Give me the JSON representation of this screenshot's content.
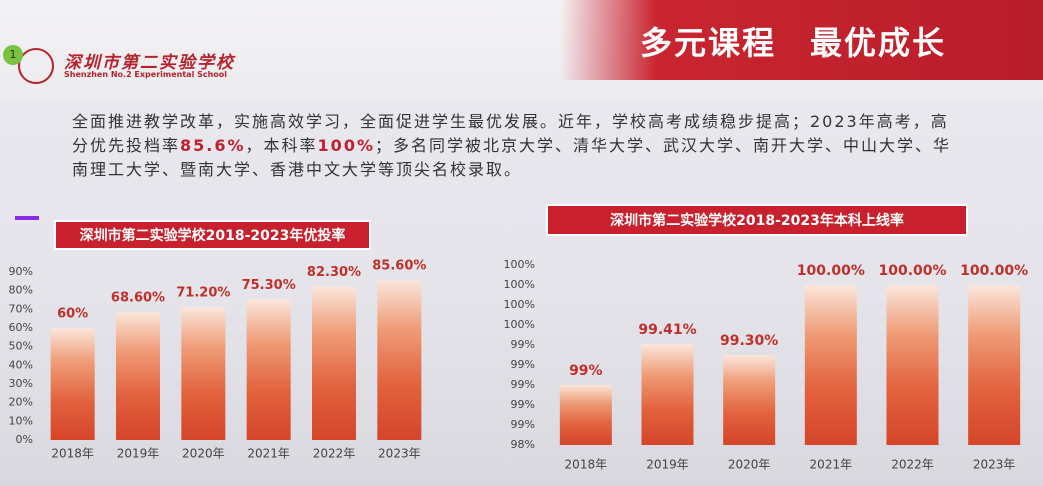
{
  "badge": "1",
  "header": {
    "school_cn": "深圳市第二实验学校",
    "school_en": "Shenzhen No.2 Experimental School",
    "title": "多元课程　最优成长"
  },
  "intro": [
    "全面推进教学改革，实施高效学习，全面促进学生最优发展。近年，学校高考成绩稳步提高；2023年高考，高分优先投档率",
    "85.6%",
    "，本科率",
    "100%",
    "；多名同学被北京大学、清华大学、武汉大学、南开大学、中山大学、华南理工大学、暨南大学、香港中文大学等顶尖名校录取。"
  ],
  "chart_data": [
    {
      "type": "bar",
      "title": "深圳市第二实验学校2018-2023年优投率",
      "categories": [
        "2018年",
        "2019年",
        "2020年",
        "2021年",
        "2022年",
        "2023年"
      ],
      "values": [
        60,
        68.6,
        71.2,
        75.3,
        82.3,
        85.6
      ],
      "value_labels": [
        "60%",
        "68.60%",
        "71.20%",
        "75.30%",
        "82.30%",
        "85.60%"
      ],
      "ylim": [
        0,
        90
      ],
      "yticks": [
        {
          "value": 0,
          "label": "0%"
        },
        {
          "value": 10,
          "label": "10%"
        },
        {
          "value": 20,
          "label": "20%"
        },
        {
          "value": 30,
          "label": "30%"
        },
        {
          "value": 40,
          "label": "40%"
        },
        {
          "value": 50,
          "label": "50%"
        },
        {
          "value": 60,
          "label": "60%"
        },
        {
          "value": 70,
          "label": "70%"
        },
        {
          "value": 80,
          "label": "80%"
        },
        {
          "value": 90,
          "label": "90%"
        }
      ]
    },
    {
      "type": "bar",
      "title": "深圳市第二实验学校2018-2023年本科上线率",
      "categories": [
        "2018年",
        "2019年",
        "2020年",
        "2021年",
        "2022年",
        "2023年"
      ],
      "values": [
        99,
        99.41,
        99.3,
        100,
        100,
        100
      ],
      "value_labels": [
        "99%",
        "99.41%",
        "99.30%",
        "100.00%",
        "100.00%",
        "100.00%"
      ],
      "ylim": [
        98.4,
        100.2
      ],
      "yticks": [
        {
          "value": 98.4,
          "label": "98%"
        },
        {
          "value": 98.6,
          "label": "99%"
        },
        {
          "value": 98.8,
          "label": "99%"
        },
        {
          "value": 99.0,
          "label": "99%"
        },
        {
          "value": 99.2,
          "label": "99%"
        },
        {
          "value": 99.4,
          "label": "99%"
        },
        {
          "value": 99.6,
          "label": "100%"
        },
        {
          "value": 99.8,
          "label": "100%"
        },
        {
          "value": 100.0,
          "label": "100%"
        },
        {
          "value": 100.2,
          "label": "100%"
        }
      ]
    }
  ]
}
